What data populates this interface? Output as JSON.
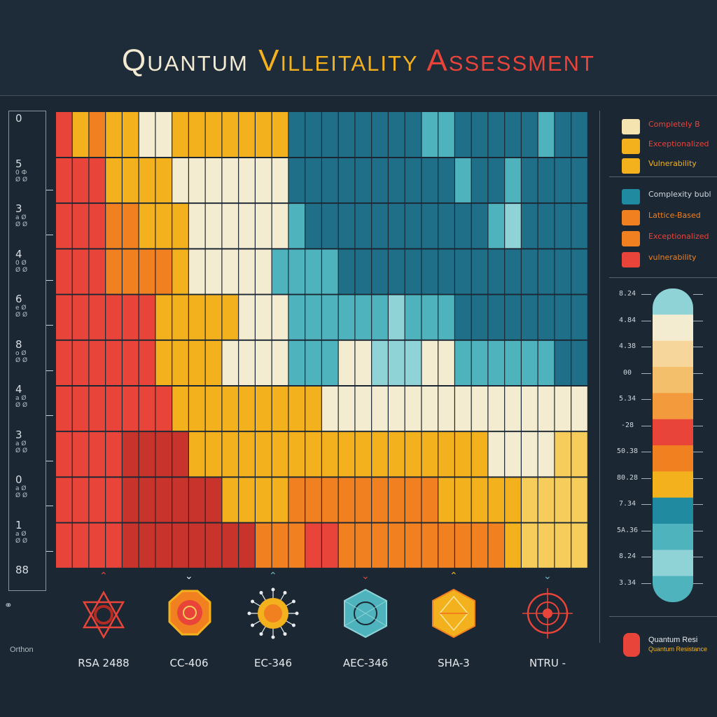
{
  "title": {
    "word1": "Quantum",
    "word2": "Villeitality",
    "word3": "Assessment"
  },
  "y_axis": {
    "ticks": [
      {
        "big": "0",
        "small": ""
      },
      {
        "big": "5",
        "small": "0 Ф\nØ Ø"
      },
      {
        "big": "3",
        "small": "a Ø\nØ Ø"
      },
      {
        "big": "4",
        "small": "0 Ø\nØ Ø"
      },
      {
        "big": "6",
        "small": "e Ø\nØ Ø"
      },
      {
        "big": "8",
        "small": "o Ø\nØ Ø"
      },
      {
        "big": "4",
        "small": "a Ø\nØ Ø"
      },
      {
        "big": "3",
        "small": "a Ø\nØ Ø"
      },
      {
        "big": "0",
        "small": "a Ø\nØ Ø"
      },
      {
        "big": "1",
        "small": "a Ø\nØ Ø"
      },
      {
        "big": "88",
        "small": ""
      }
    ],
    "corner_icon": "⚭",
    "corner_label": "Orthon"
  },
  "x_axis": {
    "labels": [
      "RSA 2488",
      "CC-406",
      "EC-346",
      "AEC-346",
      "SHA-3",
      "NTRU -"
    ],
    "icons": [
      "hexagram-icon",
      "octagon-icon",
      "molecule-icon",
      "hexagon-icon",
      "crystal-icon",
      "target-icon"
    ],
    "marker_colors": [
      "#e9443a",
      "#e8ecef",
      "#6fb9c4",
      "#e9443a",
      "#f3b21d",
      "#6fb9c4"
    ]
  },
  "legend": {
    "group1": [
      {
        "label": "Completely B",
        "color": "#f5e3b0",
        "text_color": "#e9443a"
      },
      {
        "label": "Exceptionalized",
        "color": "#f3b21d",
        "text_color": "#e9443a"
      },
      {
        "label": "Vulnerability",
        "color": "#f3b21d",
        "text_color": "#f3b21d"
      }
    ],
    "group2": [
      {
        "label": "Complexity bubl",
        "color": "#1f8aa0",
        "text_color": "#cfd6dc"
      },
      {
        "label": "Lattice-Based",
        "color": "#f08020",
        "text_color": "#f08020"
      },
      {
        "label": "Exceptionalized",
        "color": "#f08020",
        "text_color": "#e9443a"
      },
      {
        "label": "vulnerability",
        "color": "#e9443a",
        "text_color": "#f08020"
      }
    ],
    "bottom": {
      "label1": "Quantum Resi",
      "label2": "Quantum Resistance",
      "color": "#e9443a"
    }
  },
  "colorbar": {
    "labels": [
      "8.24",
      "4.84",
      "4.38",
      "00",
      "5.34",
      "-28",
      "50.38",
      "80.28",
      "7.34",
      "5A.36",
      "8.24",
      "3.34"
    ],
    "colors": [
      "#8fd3d6",
      "#f4ecd0",
      "#f6d69a",
      "#f4bf6a",
      "#f39a3c",
      "#e9443a",
      "#f08020",
      "#f3b21d",
      "#1f8aa0",
      "#4fb3bd",
      "#8fd3d6",
      "#4fb3bd"
    ]
  },
  "chart_data": {
    "type": "heatmap",
    "title": "Quantum Villeitality Assessment",
    "x_groups": [
      "RSA 2488",
      "CC-406",
      "EC-346",
      "AEC-346",
      "SHA-3",
      "NTRU -"
    ],
    "columns": 32,
    "rows": 10,
    "palette": {
      "R": "#e9443a",
      "r": "#c8342b",
      "O": "#f08020",
      "Y": "#f3b21d",
      "y": "#f6cd5a",
      "C": "#f4ecd0",
      "c": "#e9dfb8",
      "T": "#4fb3bd",
      "t": "#8fd3d6",
      "B": "#1f6f88",
      "b": "#2a85a0"
    },
    "grid": [
      "RYOYYCCYYYYYYYBBBBBBBBTTBBBBBTBB",
      "RRRYYYYCCCCCCCBBBBBBBBBBTBBTBBBB",
      "RRROOYYYCCCCCCTBBBBBBBBBBBTtBBBB",
      "RRROOOOYCCCCCTTTTBBBBBBBBBBBBBBB",
      "RRRRRRYYYYYCCCTTTTTTtTTTBBBBBBBB",
      "RRRRRRYYYYCCCCTTTCCtttCCTTTTTTBB",
      "RRRRRRRYYYYYYYYYCCCCCCCCCCCCCCCC",
      "RRRRrrrrYYYYYYYYYYYYYYYYYYCCCCyy",
      "RRRRrrrrrrYYYYOOOOOOOOOYYYYYyyyy",
      "RRRRrrrrrrrrOOORROOOOOOOOOOYyyyy"
    ]
  }
}
